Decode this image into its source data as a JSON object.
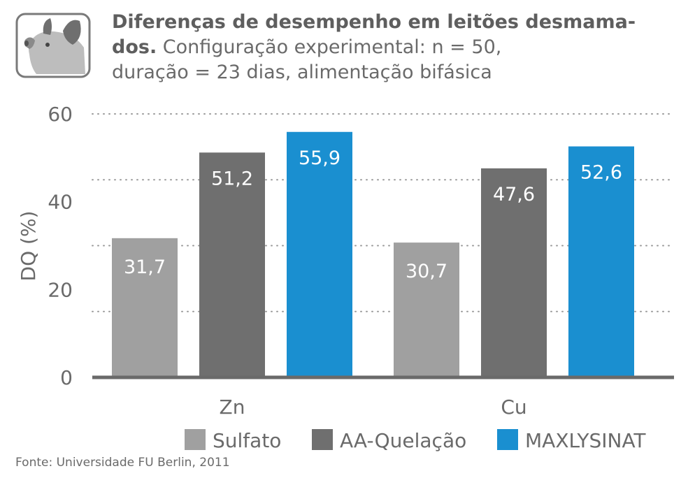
{
  "header": {
    "icon": "pig-icon",
    "title_bold_line1": "Diferenças de desempenho em leitões desmama-",
    "title_bold_line2": "dos.",
    "title_rest_line2": " Configuração experimental: n = 50,",
    "title_line3": "duração = 23 dias, alimentação bifásica"
  },
  "chart_data": {
    "type": "bar",
    "title": "Diferenças de desempenho em leitões desmamados. Configuração experimental: n = 50, duração = 23 dias, alimentação bifásica",
    "categories": [
      "Zn",
      "Cu"
    ],
    "series": [
      {
        "name": "Sulfato",
        "color": "#a0a0a0",
        "values": [
          31.7,
          30.7
        ],
        "labels": [
          "31,7",
          "30,7"
        ]
      },
      {
        "name": "AA-Quelação",
        "color": "#6f6f6f",
        "values": [
          51.2,
          47.6
        ],
        "labels": [
          "51,2",
          "47,6"
        ]
      },
      {
        "name": "MAXLYSINAT",
        "color": "#1a8fd0",
        "values": [
          55.9,
          52.6
        ],
        "labels": [
          "55,9",
          "52,6"
        ]
      }
    ],
    "xlabel": "",
    "ylabel": "DQ (%)",
    "ylim": [
      0,
      60
    ],
    "yticks": [
      0,
      20,
      40,
      60
    ],
    "gridlines_dotted": [
      15,
      30,
      45,
      60
    ],
    "legend_position": "bottom",
    "grid": true
  },
  "source": "Fonte: Universidade FU Berlin, 2011"
}
